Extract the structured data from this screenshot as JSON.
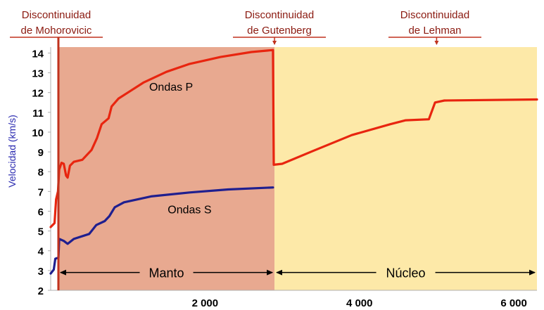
{
  "chart_data": {
    "type": "line",
    "ylabel": "Velocidad (km/s)",
    "xlim": [
      0,
      6300
    ],
    "ylim": [
      2,
      14.3
    ],
    "x_ticks": [
      2000,
      4000,
      6000
    ],
    "x_tick_labels": [
      "2 000",
      "4 000",
      "6 000"
    ],
    "y_ticks": [
      2,
      3,
      4,
      5,
      6,
      7,
      8,
      9,
      10,
      11,
      12,
      13,
      14
    ],
    "y_tick_labels": [
      "2",
      "3",
      "4",
      "5",
      "6",
      "7",
      "8",
      "9",
      "10",
      "11",
      "12",
      "13",
      "14"
    ],
    "regions": [
      {
        "label": "Manto",
        "x": [
          100,
          2900
        ],
        "color": "#e8a990"
      },
      {
        "label": "Núcleo",
        "x": [
          2900,
          6300
        ],
        "color": "#fde9a8"
      }
    ],
    "discontinuities": [
      {
        "label_line1": "Discontinuidad",
        "label_line2": "de Mohorovicic",
        "x": 100
      },
      {
        "label_line1": "Discontinuidad",
        "label_line2": "de Gutenberg",
        "x": 2900
      },
      {
        "label_line1": "Discontinuidad",
        "label_line2": "de Lehman",
        "x": 5000
      }
    ],
    "series": [
      {
        "name": "Ondas P",
        "color": "#e8250f",
        "points": [
          [
            0,
            5.2
          ],
          [
            50,
            5.4
          ],
          [
            70,
            6.6
          ],
          [
            95,
            7.0
          ],
          [
            110,
            8.1
          ],
          [
            140,
            8.45
          ],
          [
            170,
            8.4
          ],
          [
            200,
            7.8
          ],
          [
            220,
            7.7
          ],
          [
            250,
            8.3
          ],
          [
            300,
            8.5
          ],
          [
            410,
            8.6
          ],
          [
            530,
            9.1
          ],
          [
            600,
            9.7
          ],
          [
            660,
            10.4
          ],
          [
            750,
            10.7
          ],
          [
            790,
            11.3
          ],
          [
            880,
            11.7
          ],
          [
            1000,
            12.0
          ],
          [
            1200,
            12.5
          ],
          [
            1500,
            13.05
          ],
          [
            1800,
            13.45
          ],
          [
            2200,
            13.8
          ],
          [
            2600,
            14.05
          ],
          [
            2880,
            14.15
          ],
          [
            2890,
            8.35
          ],
          [
            3000,
            8.4
          ],
          [
            3400,
            9.05
          ],
          [
            3900,
            9.85
          ],
          [
            4400,
            10.4
          ],
          [
            4600,
            10.6
          ],
          [
            4900,
            10.65
          ],
          [
            4980,
            11.5
          ],
          [
            5100,
            11.6
          ],
          [
            6300,
            11.65
          ]
        ]
      },
      {
        "name": "Ondas S",
        "color": "#1f1f8f",
        "points": [
          [
            0,
            2.85
          ],
          [
            40,
            3.05
          ],
          [
            60,
            3.6
          ],
          [
            100,
            3.65
          ],
          [
            110,
            4.6
          ],
          [
            170,
            4.5
          ],
          [
            220,
            4.35
          ],
          [
            300,
            4.6
          ],
          [
            500,
            4.85
          ],
          [
            590,
            5.3
          ],
          [
            700,
            5.5
          ],
          [
            760,
            5.75
          ],
          [
            830,
            6.2
          ],
          [
            950,
            6.45
          ],
          [
            1300,
            6.75
          ],
          [
            1800,
            6.95
          ],
          [
            2300,
            7.1
          ],
          [
            2880,
            7.2
          ]
        ]
      }
    ],
    "annotations": [
      {
        "text": "Ondas P",
        "x": 1560,
        "y": 12.1
      },
      {
        "text": "Ondas S",
        "x": 1800,
        "y": 5.9
      }
    ]
  }
}
